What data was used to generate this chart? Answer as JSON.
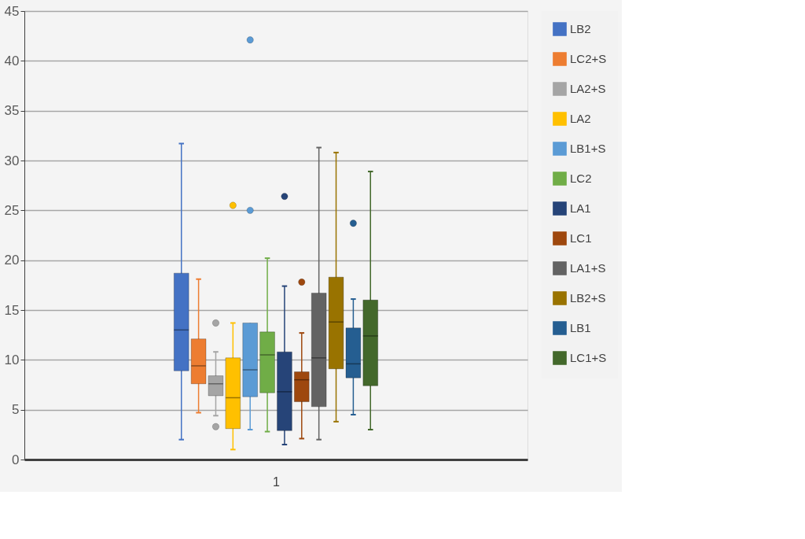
{
  "chart_data": {
    "type": "box",
    "categories": [
      "1"
    ],
    "ylim": [
      0,
      45
    ],
    "yticks": [
      0,
      5,
      10,
      15,
      20,
      25,
      30,
      35,
      40,
      45
    ],
    "grid": "y",
    "legend": "right",
    "series": [
      {
        "name": "LB2",
        "color": "#4472c4",
        "boxes": [
          {
            "low": 2.0,
            "q1": 8.9,
            "median": 13.0,
            "q3": 18.7,
            "high": 31.7
          }
        ]
      },
      {
        "name": "LC2+S",
        "color": "#ed7d31",
        "boxes": [
          {
            "low": 4.7,
            "q1": 7.6,
            "median": 9.4,
            "q3": 12.1,
            "high": 18.1
          }
        ]
      },
      {
        "name": "LA2+S",
        "color": "#a5a5a5",
        "boxes": [
          {
            "low": 4.4,
            "q1": 6.4,
            "median": 7.6,
            "q3": 8.4,
            "high": 10.8,
            "outliers": [
              13.7,
              3.3
            ]
          }
        ]
      },
      {
        "name": "LA2",
        "color": "#ffc000",
        "boxes": [
          {
            "low": 1.0,
            "q1": 3.1,
            "median": 6.2,
            "q3": 10.2,
            "high": 13.7,
            "outliers": [
              25.5
            ]
          }
        ]
      },
      {
        "name": "LB1+S",
        "color": "#5b9bd5",
        "boxes": [
          {
            "low": 3.0,
            "q1": 6.3,
            "median": 9.0,
            "q3": 13.7,
            "high": 13.7,
            "outliers": [
              42.1,
              25.0
            ]
          }
        ]
      },
      {
        "name": "LC2",
        "color": "#70ad47",
        "boxes": [
          {
            "low": 2.8,
            "q1": 6.7,
            "median": 10.5,
            "q3": 12.8,
            "high": 20.2
          }
        ]
      },
      {
        "name": "LA1",
        "color": "#264478",
        "boxes": [
          {
            "low": 1.5,
            "q1": 2.9,
            "median": 6.8,
            "q3": 10.8,
            "high": 17.4,
            "outliers": [
              26.4
            ]
          }
        ]
      },
      {
        "name": "LC1",
        "color": "#9e480e",
        "boxes": [
          {
            "low": 2.1,
            "q1": 5.8,
            "median": 8.0,
            "q3": 8.8,
            "high": 12.7,
            "outliers": [
              17.8
            ]
          }
        ]
      },
      {
        "name": "LA1+S",
        "color": "#636363",
        "boxes": [
          {
            "low": 2.0,
            "q1": 5.3,
            "median": 10.2,
            "q3": 16.7,
            "high": 31.3
          }
        ]
      },
      {
        "name": "LB2+S",
        "color": "#997300",
        "boxes": [
          {
            "low": 3.8,
            "q1": 9.1,
            "median": 13.8,
            "q3": 18.3,
            "high": 30.8
          }
        ]
      },
      {
        "name": "LB1",
        "color": "#255e91",
        "boxes": [
          {
            "low": 4.5,
            "q1": 8.2,
            "median": 9.6,
            "q3": 13.2,
            "high": 16.1,
            "outliers": [
              23.7
            ]
          }
        ]
      },
      {
        "name": "LC1+S",
        "color": "#43682b",
        "boxes": [
          {
            "low": 3.0,
            "q1": 7.4,
            "median": 12.4,
            "q3": 16.0,
            "high": 28.9
          }
        ]
      }
    ]
  }
}
